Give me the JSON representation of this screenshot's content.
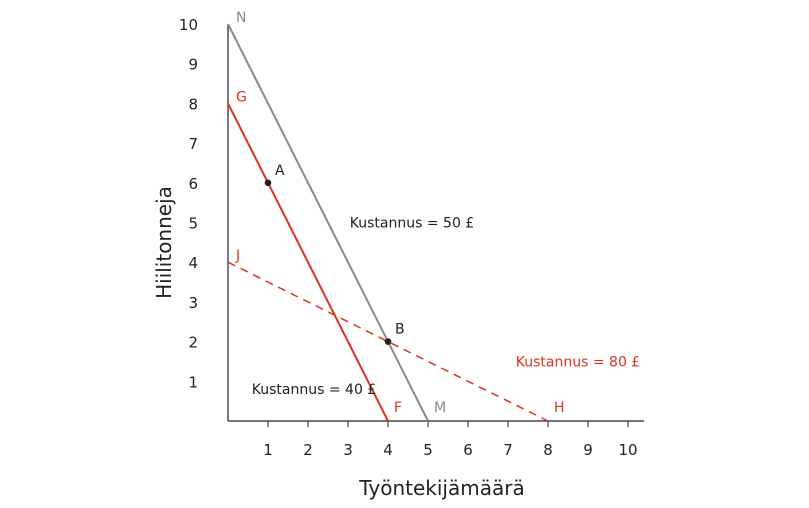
{
  "chart_data": {
    "type": "line",
    "title": "",
    "xlabel": "Työntekijämäärä",
    "ylabel": "Hiilitonneja",
    "xlim": [
      0,
      10.4
    ],
    "ylim": [
      0,
      10
    ],
    "x_ticks": [
      1,
      2,
      3,
      4,
      5,
      6,
      7,
      8,
      9,
      10
    ],
    "y_ticks": [
      1,
      2,
      3,
      4,
      5,
      6,
      7,
      8,
      9,
      10
    ],
    "grid": false,
    "colors": {
      "red": "#d8341f",
      "gray": "#8a8a8a",
      "ink": "#222222"
    },
    "series": [
      {
        "name": "Kustannus = 50 £",
        "style": "solid",
        "color": "#8a8a8a",
        "x": [
          0,
          5
        ],
        "y": [
          10,
          0
        ],
        "start_label": "N",
        "end_label": "M",
        "label_x": 4.6,
        "label_y": 5
      },
      {
        "name": "Kustannus = 40 £",
        "style": "solid",
        "color": "#d8341f",
        "x": [
          0,
          4
        ],
        "y": [
          8,
          0
        ],
        "start_label": "G",
        "end_label": "F",
        "label_x": 2.15,
        "label_y": 0.8
      },
      {
        "name": "Kustannus = 80 £",
        "style": "dashed",
        "color": "#d8341f",
        "x": [
          0,
          8
        ],
        "y": [
          4,
          0
        ],
        "start_label": "J",
        "end_label": "H",
        "label_x": 8.75,
        "label_y": 1.5
      }
    ],
    "points": [
      {
        "name": "A",
        "x": 1,
        "y": 6
      },
      {
        "name": "B",
        "x": 4,
        "y": 2
      }
    ]
  }
}
